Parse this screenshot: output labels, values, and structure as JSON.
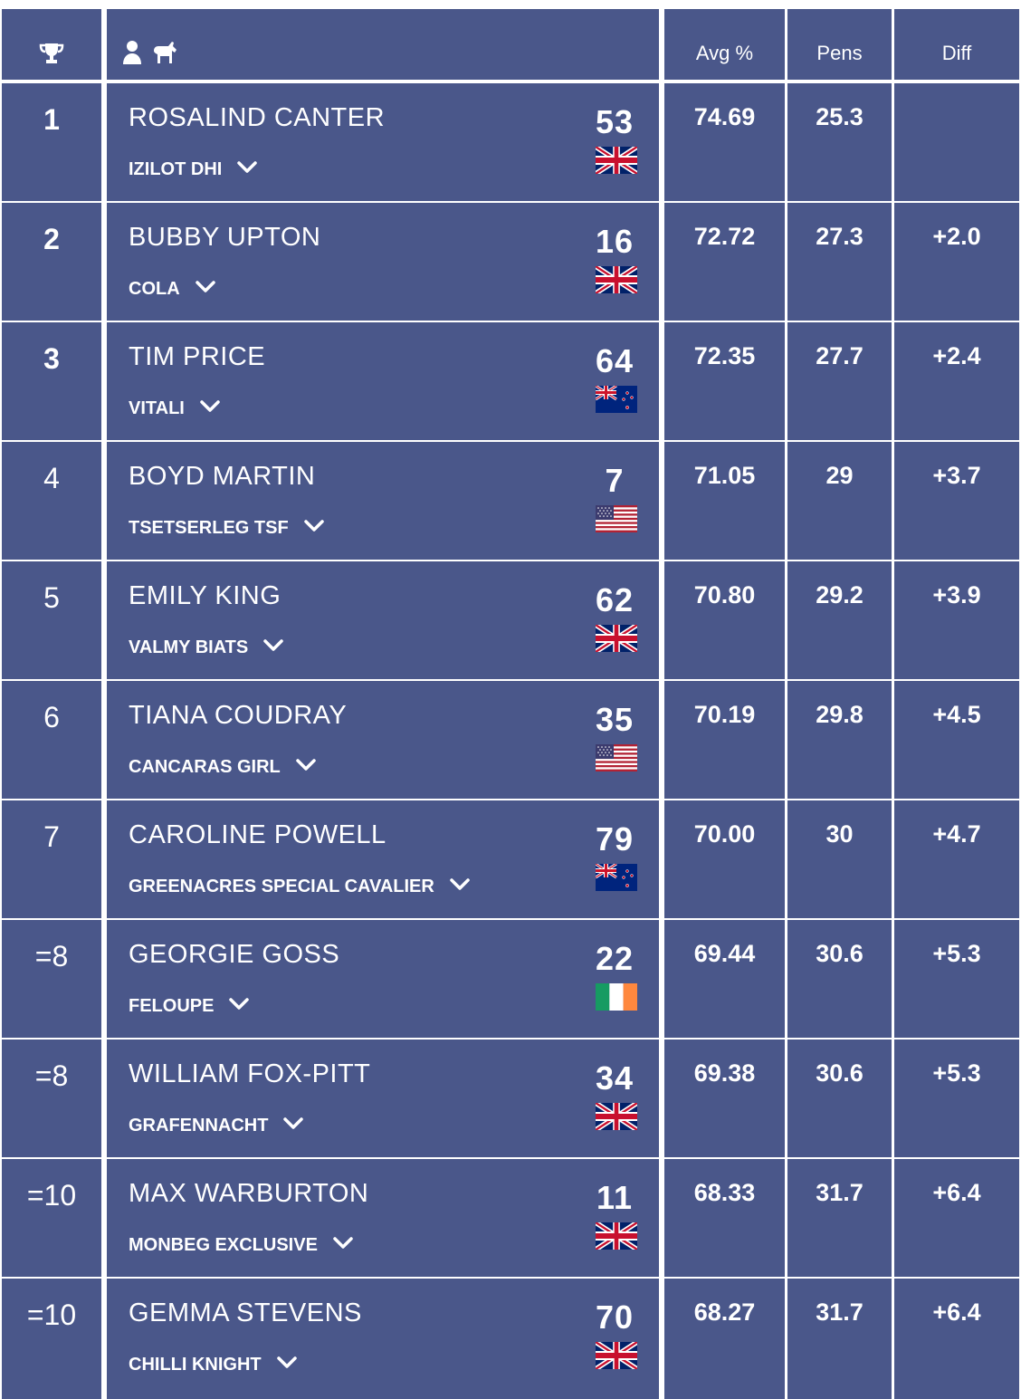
{
  "header": {
    "trophy_icon": "trophy-icon",
    "rider_icon": "person-icon",
    "horse_icon": "horse-icon",
    "avg_label": "Avg %",
    "pens_label": "Pens",
    "diff_label": "Diff"
  },
  "colors": {
    "cell_bg": "#4a578a",
    "gap": "#ffffff",
    "text": "#ffffff"
  },
  "rows": [
    {
      "pos": "1",
      "rider": "ROSALIND CANTER",
      "horse": "IZILOT DHI",
      "num": "53",
      "flag": "gb",
      "avg": "74.69",
      "pens": "25.3",
      "diff": "",
      "bold": true
    },
    {
      "pos": "2",
      "rider": "BUBBY UPTON",
      "horse": "COLA",
      "num": "16",
      "flag": "gb",
      "avg": "72.72",
      "pens": "27.3",
      "diff": "+2.0",
      "bold": true
    },
    {
      "pos": "3",
      "rider": "TIM PRICE",
      "horse": "VITALI",
      "num": "64",
      "flag": "nz",
      "avg": "72.35",
      "pens": "27.7",
      "diff": "+2.4",
      "bold": true
    },
    {
      "pos": "4",
      "rider": "BOYD MARTIN",
      "horse": "TSETSERLEG TSF",
      "num": "7",
      "flag": "us",
      "avg": "71.05",
      "pens": "29",
      "diff": "+3.7",
      "bold": false
    },
    {
      "pos": "5",
      "rider": "EMILY KING",
      "horse": "VALMY BIATS",
      "num": "62",
      "flag": "gb",
      "avg": "70.80",
      "pens": "29.2",
      "diff": "+3.9",
      "bold": false
    },
    {
      "pos": "6",
      "rider": "TIANA COUDRAY",
      "horse": "CANCARAS GIRL",
      "num": "35",
      "flag": "us",
      "avg": "70.19",
      "pens": "29.8",
      "diff": "+4.5",
      "bold": false
    },
    {
      "pos": "7",
      "rider": "CAROLINE POWELL",
      "horse": "GREENACRES SPECIAL CAVALIER",
      "num": "79",
      "flag": "nz",
      "avg": "70.00",
      "pens": "30",
      "diff": "+4.7",
      "bold": false
    },
    {
      "pos": "=8",
      "rider": "GEORGIE GOSS",
      "horse": "FELOUPE",
      "num": "22",
      "flag": "ie",
      "avg": "69.44",
      "pens": "30.6",
      "diff": "+5.3",
      "bold": false
    },
    {
      "pos": "=8",
      "rider": "WILLIAM FOX-PITT",
      "horse": "GRAFENNACHT",
      "num": "34",
      "flag": "gb",
      "avg": "69.38",
      "pens": "30.6",
      "diff": "+5.3",
      "bold": false
    },
    {
      "pos": "=10",
      "rider": "MAX WARBURTON",
      "horse": "MONBEG EXCLUSIVE",
      "num": "11",
      "flag": "gb",
      "avg": "68.33",
      "pens": "31.7",
      "diff": "+6.4",
      "bold": false
    },
    {
      "pos": "=10",
      "rider": "GEMMA STEVENS",
      "horse": "CHILLI KNIGHT",
      "num": "70",
      "flag": "gb",
      "avg": "68.27",
      "pens": "31.7",
      "diff": "+6.4",
      "bold": false
    }
  ]
}
